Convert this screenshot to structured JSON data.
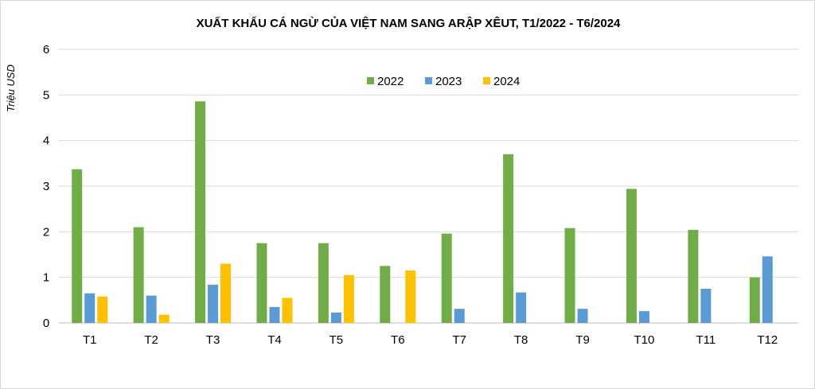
{
  "chart_data": {
    "type": "bar",
    "title": "XUẤT KHẨU CÁ NGỪ CỦA VIỆT NAM SANG ARẬP XÊUT, T1/2022 - T6/2024",
    "ylabel": "Triệu USD",
    "xlabel": "",
    "ylim": [
      0,
      6
    ],
    "yticks": [
      0,
      1,
      2,
      3,
      4,
      5,
      6
    ],
    "grid": true,
    "legend_position": "top-center",
    "categories": [
      "T1",
      "T2",
      "T3",
      "T4",
      "T5",
      "T6",
      "T7",
      "T8",
      "T9",
      "T10",
      "T11",
      "T12"
    ],
    "series": [
      {
        "name": "2022",
        "color": "#70ad47",
        "values": [
          3.37,
          2.1,
          4.86,
          1.75,
          1.75,
          1.25,
          1.96,
          3.7,
          2.08,
          2.94,
          2.04,
          1.0
        ]
      },
      {
        "name": "2023",
        "color": "#5b9bd5",
        "values": [
          0.65,
          0.6,
          0.84,
          0.35,
          0.23,
          null,
          0.31,
          0.67,
          0.31,
          0.26,
          0.75,
          1.46
        ]
      },
      {
        "name": "2024",
        "color": "#ffc000",
        "values": [
          0.58,
          0.18,
          1.3,
          0.55,
          1.05,
          1.15,
          null,
          null,
          null,
          null,
          null,
          null
        ]
      }
    ]
  }
}
